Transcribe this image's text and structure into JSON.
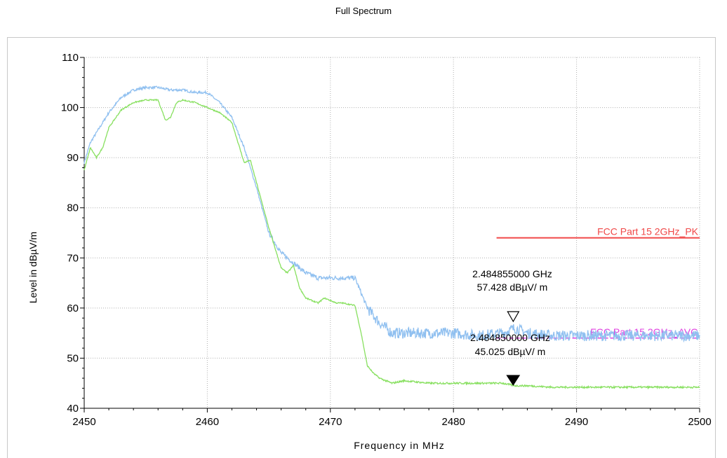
{
  "chart_data": {
    "type": "line",
    "title": "Full Spectrum",
    "xlabel": "Frequency in MHz",
    "ylabel": "Level in dBµV/m",
    "xlim": [
      2450,
      2500
    ],
    "ylim": [
      40,
      110
    ],
    "x_ticks": [
      "2450",
      "2460",
      "2470",
      "2480",
      "2490",
      "2500"
    ],
    "y_ticks": [
      "40",
      "50",
      "60",
      "70",
      "80",
      "90",
      "100",
      "110"
    ],
    "grid": true,
    "colors": {
      "peak": "#90c0f0",
      "average": "#88e060",
      "limit_pk": "#f04848",
      "limit_avg": "#e040e0"
    },
    "series": [
      {
        "key": "peak",
        "x": [
          2450,
          2450.5,
          2451,
          2452,
          2453,
          2454,
          2455,
          2456,
          2457,
          2458,
          2459,
          2460,
          2461,
          2462,
          2463,
          2464,
          2465,
          2466,
          2467,
          2468,
          2469,
          2470,
          2471,
          2472,
          2473,
          2474,
          2475,
          2476,
          2478,
          2480,
          2482,
          2484,
          2485,
          2486,
          2488,
          2490,
          2492,
          2494,
          2496,
          2498,
          2500
        ],
        "y": [
          89,
          93,
          95,
          99,
          102,
          103.5,
          104,
          104,
          103.5,
          103.5,
          103,
          103,
          101,
          98,
          92,
          84,
          75,
          71,
          69,
          67,
          66,
          66,
          66,
          66,
          60,
          57,
          55,
          55,
          55,
          55,
          54.5,
          55,
          56,
          55,
          54.5,
          54.5,
          54.5,
          54.5,
          54.5,
          54.5,
          54.5
        ]
      },
      {
        "key": "average",
        "x": [
          2450,
          2450.5,
          2451,
          2451.5,
          2452,
          2453,
          2454,
          2455,
          2456,
          2456.6,
          2457,
          2457.5,
          2458,
          2459,
          2460,
          2461,
          2462,
          2462.5,
          2463,
          2463.5,
          2464,
          2465,
          2466,
          2466.5,
          2467,
          2467.5,
          2468,
          2469,
          2469.5,
          2470,
          2470.5,
          2471,
          2472,
          2472.5,
          2473,
          2473.5,
          2474,
          2475,
          2476,
          2478,
          2480,
          2482,
          2484,
          2485,
          2486,
          2488,
          2490,
          2492,
          2494,
          2496,
          2498,
          2500
        ],
        "y": [
          87.5,
          92,
          90,
          92,
          96,
          99.5,
          101,
          101.5,
          101.5,
          97.5,
          98,
          101,
          101.5,
          101,
          100,
          99,
          97,
          93,
          89,
          89.5,
          85,
          76,
          68,
          67,
          68.5,
          64,
          62,
          61,
          62,
          61.5,
          61,
          61,
          60.5,
          55,
          48.5,
          47,
          46,
          45,
          45.5,
          45,
          45,
          45,
          45,
          44.5,
          44.5,
          44.2,
          44.2,
          44.2,
          44.2,
          44.2,
          44.2,
          44.2
        ]
      }
    ],
    "limits": [
      {
        "name": "FCC Part 15 2GHz_PK",
        "x": [
          2483.5,
          2500
        ],
        "y": [
          74,
          74
        ]
      },
      {
        "name": "FCC Part 15 2GHz_AVG",
        "x": [
          2483.5,
          2500
        ],
        "y": [
          54,
          54
        ]
      }
    ],
    "markers": [
      {
        "key": "peak-marker",
        "x": 2484.855,
        "y": 57.428,
        "filled": false,
        "label_freq": "2.484855000 GHz",
        "label_level": "57.428 dBµV/ m"
      },
      {
        "key": "avg-marker",
        "x": 2484.85,
        "y": 45.025,
        "filled": true,
        "label_freq": "2.484850000 GHz",
        "label_level": "45.025 dBµV/ m"
      }
    ]
  }
}
